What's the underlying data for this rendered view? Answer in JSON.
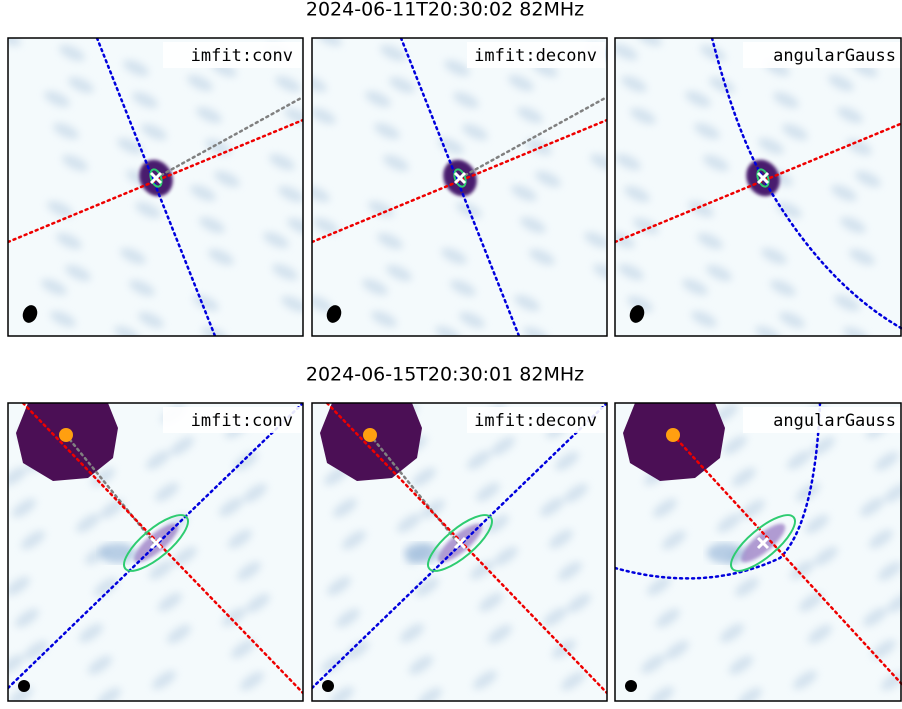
{
  "rows": [
    {
      "title": "2024-06-11T20:30:02 82MHz",
      "panels": [
        "imfit:conv",
        "imfit:deconv",
        "angularGauss"
      ]
    },
    {
      "title": "2024-06-15T20:30:01 82MHz",
      "panels": [
        "imfit:conv",
        "imfit:deconv",
        "angularGauss"
      ]
    }
  ]
}
